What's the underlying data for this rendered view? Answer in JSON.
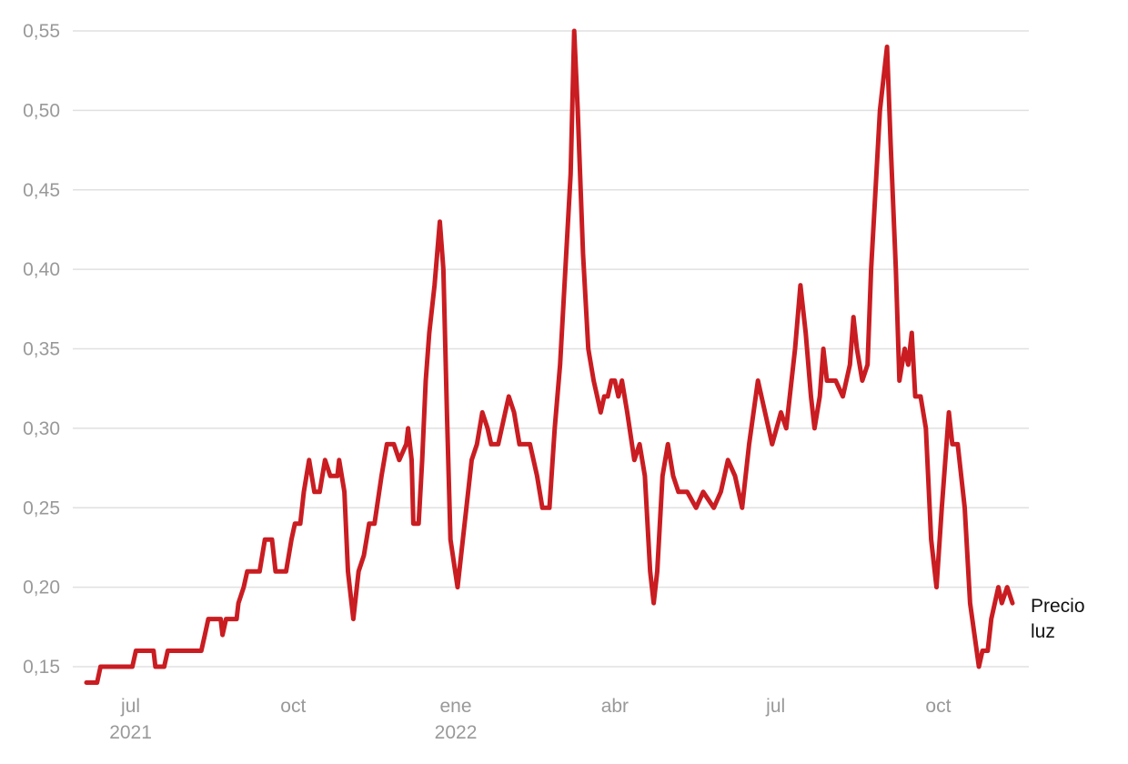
{
  "chart_data": {
    "type": "line",
    "x": [
      "2021-06-06",
      "2021-06-12",
      "2021-06-14",
      "2021-07-02",
      "2021-07-04",
      "2021-07-14",
      "2021-07-15",
      "2021-07-20",
      "2021-07-22",
      "2021-08-10",
      "2021-08-12",
      "2021-08-14",
      "2021-08-21",
      "2021-08-22",
      "2021-08-24",
      "2021-08-30",
      "2021-08-31",
      "2021-09-03",
      "2021-09-05",
      "2021-09-12",
      "2021-09-15",
      "2021-09-19",
      "2021-09-21",
      "2021-09-27",
      "2021-09-30",
      "2021-10-02",
      "2021-10-05",
      "2021-10-07",
      "2021-10-10",
      "2021-10-13",
      "2021-10-16",
      "2021-10-19",
      "2021-10-22",
      "2021-10-26",
      "2021-10-27",
      "2021-10-30",
      "2021-11-01",
      "2021-11-04",
      "2021-11-07",
      "2021-11-10",
      "2021-11-13",
      "2021-11-16",
      "2021-11-20",
      "2021-11-23",
      "2021-11-27",
      "2021-11-30",
      "2021-12-04",
      "2021-12-05",
      "2021-12-07",
      "2021-12-08",
      "2021-12-11",
      "2021-12-13",
      "2021-12-15",
      "2021-12-17",
      "2021-12-20",
      "2021-12-23",
      "2021-12-25",
      "2021-12-27",
      "2021-12-29",
      "2022-01-02",
      "2022-01-05",
      "2022-01-07",
      "2022-01-10",
      "2022-01-13",
      "2022-01-16",
      "2022-01-19",
      "2022-01-21",
      "2022-01-25",
      "2022-01-29",
      "2022-01-31",
      "2022-02-03",
      "2022-02-06",
      "2022-02-12",
      "2022-02-16",
      "2022-02-19",
      "2022-02-23",
      "2022-02-26",
      "2022-03-01",
      "2022-03-04",
      "2022-03-07",
      "2022-03-09",
      "2022-03-11",
      "2022-03-14",
      "2022-03-17",
      "2022-03-20",
      "2022-03-22",
      "2022-03-24",
      "2022-03-26",
      "2022-03-28",
      "2022-03-30",
      "2022-04-01",
      "2022-04-03",
      "2022-04-05",
      "2022-04-08",
      "2022-04-12",
      "2022-04-15",
      "2022-04-18",
      "2022-04-21",
      "2022-04-23",
      "2022-04-25",
      "2022-04-28",
      "2022-05-01",
      "2022-05-04",
      "2022-05-07",
      "2022-05-12",
      "2022-05-17",
      "2022-05-21",
      "2022-05-27",
      "2022-05-31",
      "2022-06-04",
      "2022-06-08",
      "2022-06-12",
      "2022-06-16",
      "2022-06-21",
      "2022-06-25",
      "2022-06-29",
      "2022-07-04",
      "2022-07-07",
      "2022-07-12",
      "2022-07-15",
      "2022-07-18",
      "2022-07-21",
      "2022-07-23",
      "2022-07-26",
      "2022-07-28",
      "2022-07-30",
      "2022-08-04",
      "2022-08-08",
      "2022-08-12",
      "2022-08-14",
      "2022-08-16",
      "2022-08-19",
      "2022-08-22",
      "2022-08-24",
      "2022-08-29",
      "2022-09-02",
      "2022-09-04",
      "2022-09-07",
      "2022-09-09",
      "2022-09-12",
      "2022-09-14",
      "2022-09-16",
      "2022-09-18",
      "2022-09-21",
      "2022-09-24",
      "2022-09-27",
      "2022-09-30",
      "2022-10-03",
      "2022-10-07",
      "2022-10-09",
      "2022-10-12",
      "2022-10-16",
      "2022-10-19",
      "2022-10-24",
      "2022-10-26",
      "2022-10-29",
      "2022-10-31",
      "2022-11-02",
      "2022-11-04",
      "2022-11-06",
      "2022-11-09",
      "2022-11-12"
    ],
    "series": [
      {
        "name": "Precio luz",
        "color": "#c91d22",
        "values": [
          0.14,
          0.14,
          0.15,
          0.15,
          0.16,
          0.16,
          0.15,
          0.15,
          0.16,
          0.16,
          0.17,
          0.18,
          0.18,
          0.17,
          0.18,
          0.18,
          0.19,
          0.2,
          0.21,
          0.21,
          0.23,
          0.23,
          0.21,
          0.21,
          0.23,
          0.24,
          0.24,
          0.26,
          0.28,
          0.26,
          0.26,
          0.28,
          0.27,
          0.27,
          0.28,
          0.26,
          0.21,
          0.18,
          0.21,
          0.22,
          0.24,
          0.24,
          0.27,
          0.29,
          0.29,
          0.28,
          0.29,
          0.3,
          0.28,
          0.24,
          0.24,
          0.28,
          0.33,
          0.36,
          0.39,
          0.43,
          0.4,
          0.31,
          0.23,
          0.2,
          0.23,
          0.25,
          0.28,
          0.29,
          0.31,
          0.3,
          0.29,
          0.29,
          0.31,
          0.32,
          0.31,
          0.29,
          0.29,
          0.27,
          0.25,
          0.25,
          0.3,
          0.34,
          0.4,
          0.46,
          0.55,
          0.5,
          0.41,
          0.35,
          0.33,
          0.32,
          0.31,
          0.32,
          0.32,
          0.33,
          0.33,
          0.32,
          0.33,
          0.31,
          0.28,
          0.29,
          0.27,
          0.21,
          0.19,
          0.21,
          0.27,
          0.29,
          0.27,
          0.26,
          0.26,
          0.25,
          0.26,
          0.25,
          0.26,
          0.28,
          0.27,
          0.25,
          0.29,
          0.33,
          0.31,
          0.29,
          0.31,
          0.3,
          0.35,
          0.39,
          0.36,
          0.32,
          0.3,
          0.32,
          0.35,
          0.33,
          0.33,
          0.32,
          0.34,
          0.37,
          0.35,
          0.33,
          0.34,
          0.4,
          0.5,
          0.54,
          0.48,
          0.4,
          0.33,
          0.35,
          0.34,
          0.36,
          0.32,
          0.32,
          0.3,
          0.23,
          0.2,
          0.25,
          0.31,
          0.29,
          0.29,
          0.25,
          0.19,
          0.15,
          0.16,
          0.16,
          0.18,
          0.19,
          0.2,
          0.19,
          0.2,
          0.19
        ]
      }
    ],
    "xlim": [
      "2021-06-06",
      "2022-11-12"
    ],
    "xticks": [
      {
        "value": "2021-07-01",
        "label": "jul 2021"
      },
      {
        "value": "2021-10-01",
        "label": "oct"
      },
      {
        "value": "2022-01-01",
        "label": "ene 2022"
      },
      {
        "value": "2022-04-01",
        "label": "abr"
      },
      {
        "value": "2022-07-01",
        "label": "jul"
      },
      {
        "value": "2022-10-01",
        "label": "oct"
      }
    ],
    "ylim": [
      0.14,
      0.55
    ],
    "yticks": [
      {
        "value": 0.15,
        "label": "0,15"
      },
      {
        "value": 0.2,
        "label": "0,20"
      },
      {
        "value": 0.25,
        "label": "0,25"
      },
      {
        "value": 0.3,
        "label": "0,30"
      },
      {
        "value": 0.35,
        "label": "0,35"
      },
      {
        "value": 0.4,
        "label": "0,40"
      },
      {
        "value": 0.45,
        "label": "0,45"
      },
      {
        "value": 0.5,
        "label": "0,50"
      },
      {
        "value": 0.55,
        "label": "0,55"
      }
    ],
    "grid": true
  }
}
